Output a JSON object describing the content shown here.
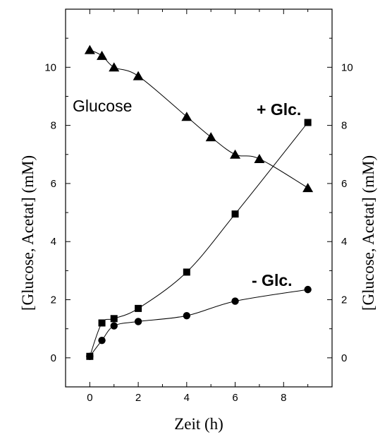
{
  "chart_data": {
    "type": "scatter",
    "xlabel": "Zeit (h)",
    "ylabel": "[Glucose, Acetat] (mM)",
    "ylabel_right": "[Glucose, Acetat] (mM)",
    "xlim": [
      -1,
      10
    ],
    "ylim": [
      -1,
      12
    ],
    "xticks": [
      0,
      2,
      4,
      6,
      8
    ],
    "yticks": [
      0,
      2,
      4,
      6,
      8,
      10
    ],
    "grid": false,
    "legend": "none",
    "annotations": [
      "Glucose",
      "+ Glc.",
      "- Glc."
    ],
    "series": [
      {
        "marker": "triangle",
        "x": [
          0,
          0.5,
          1,
          2,
          4,
          5,
          6,
          7,
          9
        ],
        "y": [
          10.6,
          10.4,
          10.0,
          9.7,
          8.3,
          7.6,
          7.0,
          6.85,
          5.85
        ]
      },
      {
        "marker": "square",
        "x": [
          0,
          0.5,
          1,
          2,
          4,
          6,
          9
        ],
        "y": [
          0.05,
          1.2,
          1.35,
          1.7,
          2.95,
          4.95,
          8.1
        ]
      },
      {
        "marker": "circle",
        "x": [
          0,
          0.5,
          1,
          2,
          4,
          6,
          9
        ],
        "y": [
          0.05,
          0.6,
          1.1,
          1.25,
          1.45,
          1.95,
          2.35
        ]
      }
    ]
  }
}
